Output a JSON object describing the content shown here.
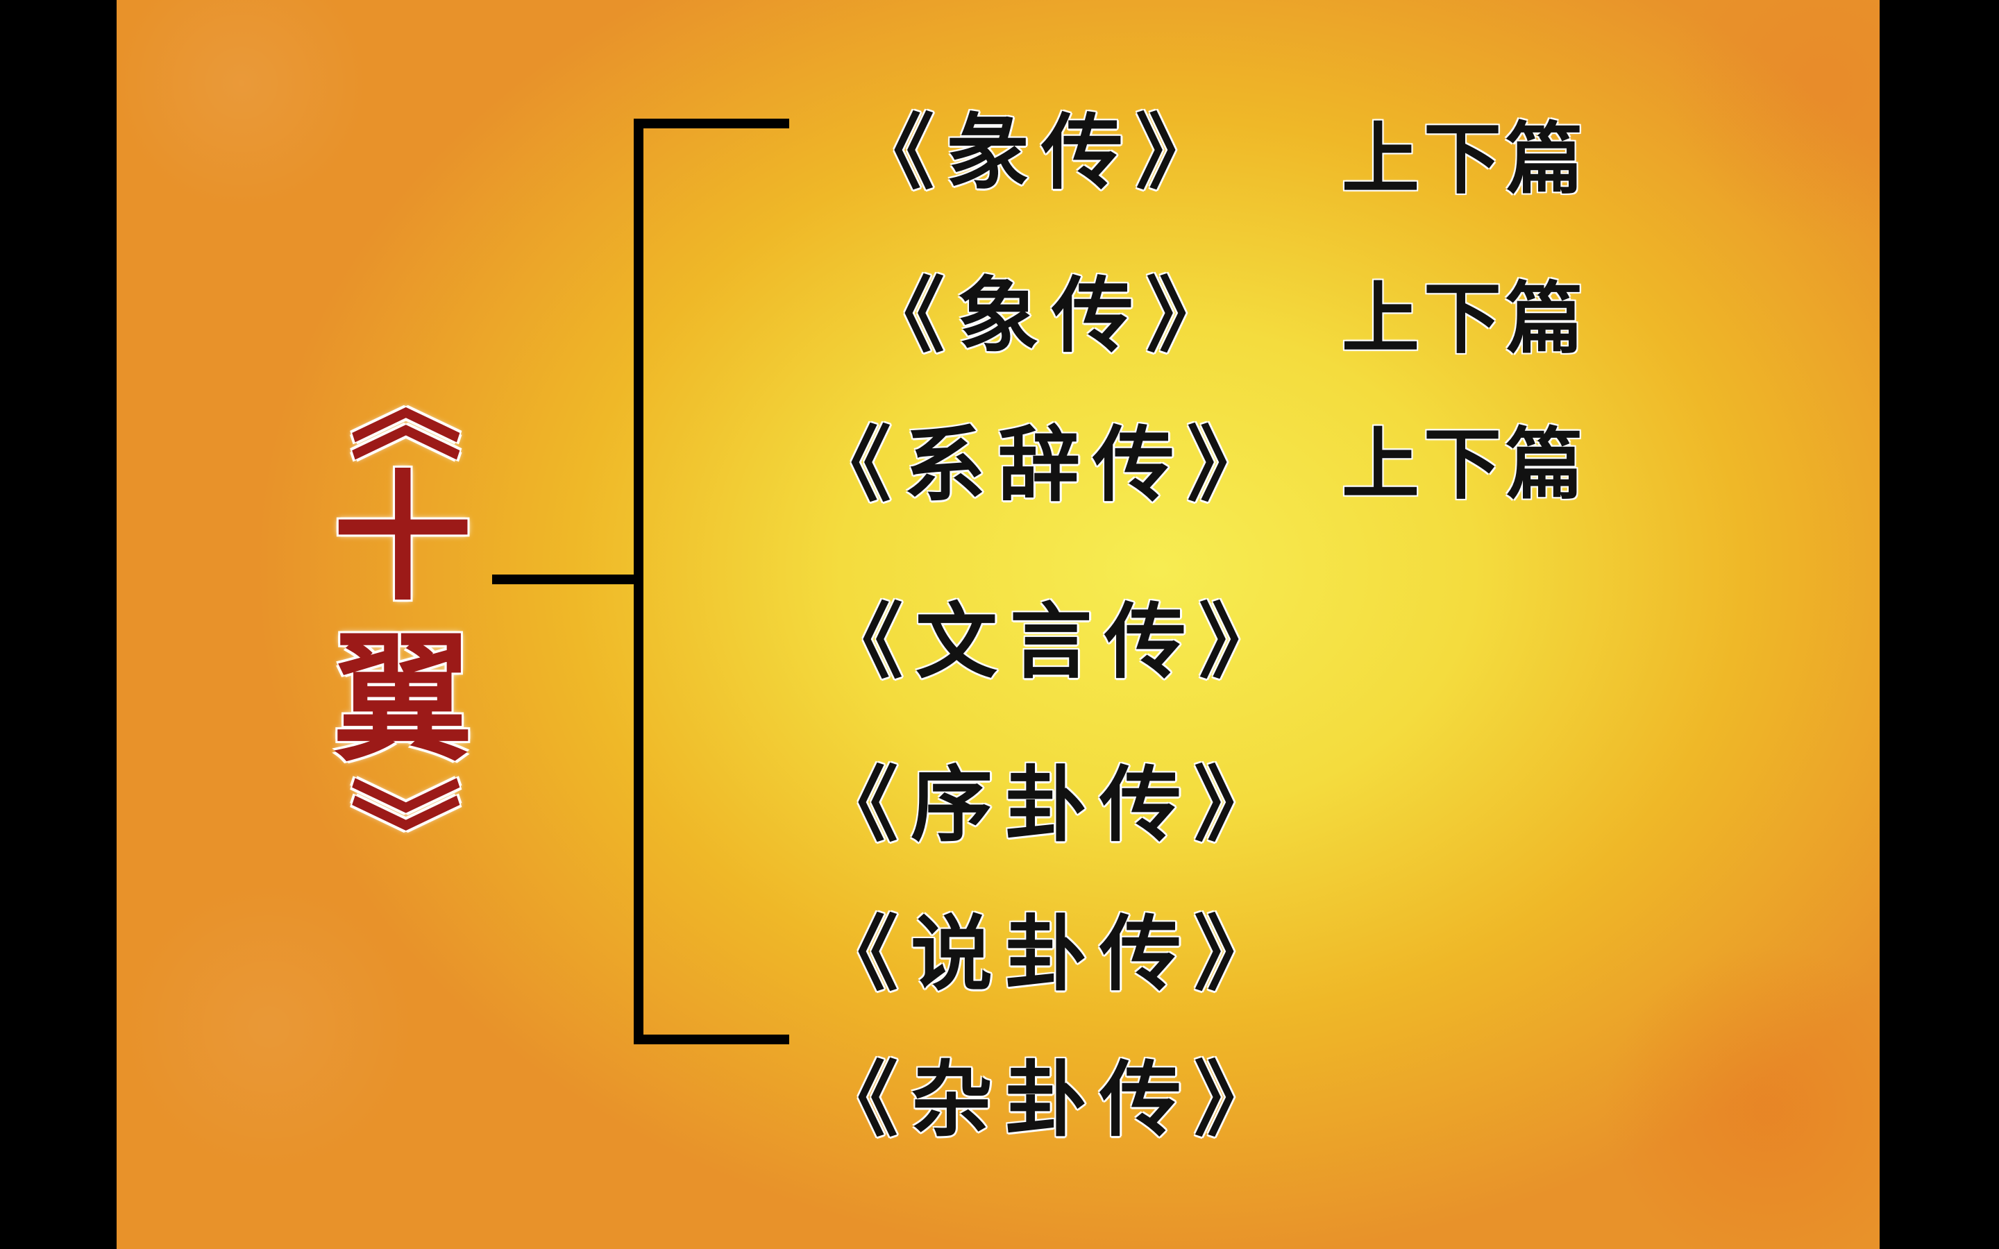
{
  "title": {
    "open_bracket": "《",
    "char1": "十",
    "char2": "翼",
    "close_bracket": "》"
  },
  "items": [
    {
      "label": "《彖传》",
      "suffix": "上下篇"
    },
    {
      "label": "《象传》",
      "suffix": "上下篇"
    },
    {
      "label": "《系辞传》",
      "suffix": "上下篇"
    },
    {
      "label": "《文言传》"
    },
    {
      "label": "《序卦传》"
    },
    {
      "label": "《说卦传》"
    },
    {
      "label": "《杂卦传》"
    }
  ],
  "colors": {
    "title": "#9c1a18",
    "text": "#111111",
    "lines": "#000000"
  }
}
